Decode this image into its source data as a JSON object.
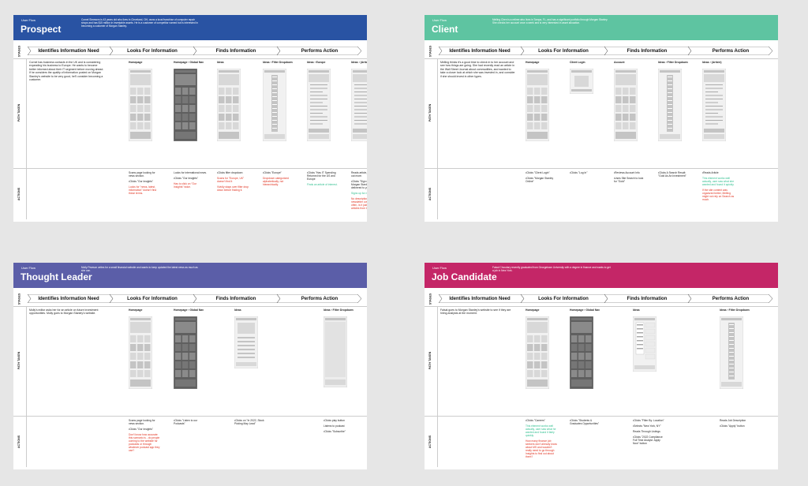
{
  "panels": [
    {
      "id": "prospect",
      "color": "#2953a3",
      "user_flow": "User Flow",
      "title": "Prospect",
      "description": "Cornel Simmons is 43 years old who lives in Cleveland, OH, owns a local franchise of computer repair shops and has $15 million in investable assets. He is a customer of competitor named but is interested in becoming a customer of Morgan Stanley.",
      "stages": [
        "Identifies Information Need",
        "Looks For Information",
        "Finds Information",
        "Performs Action"
      ],
      "side_labels": {
        "stages": "STAGES",
        "path": "PATH TAKEN",
        "actions": "ACTIONS"
      },
      "intro": "Cornel has business contacts in the UK and is considering expanding his business to Europe. He wants to become better informed about their IT segment before moving ahead. If he considers the quality of information posted on Morgan Stanley's website to be very good, he'll consider becoming a customer.",
      "columns": [
        {
          "label": "Homepage",
          "actions": [
            {
              "t": "Scans page looking for news section.",
              "c": "n"
            },
            {
              "t": "•Clicks \"Our Insights\"",
              "c": "n"
            },
            {
              "t": "Looks for \"news, latest, information\" doesn't find these terms.",
              "c": "r"
            }
          ]
        },
        {
          "label": "Homepage › Global Nav",
          "actions": [
            {
              "t": "Looks for international news.",
              "c": "n"
            },
            {
              "t": "•Clicks \"Our Insights\"",
              "c": "n"
            },
            {
              "t": "Has to click on \"Our Insights\" twice.",
              "c": "r"
            }
          ]
        },
        {
          "label": "Ideas",
          "actions": [
            {
              "t": "•Clicks filter dropdown",
              "c": "n"
            },
            {
              "t": "Scans for \"Europe, UK\" doesn't find it",
              "c": "r"
            },
            {
              "t": "Vividly stays over filter drop down before finding it.",
              "c": "r"
            }
          ]
        },
        {
          "label": "Ideas › Filter Dropdown",
          "actions": [
            {
              "t": "•Clicks \"Europe\"",
              "c": "n"
            },
            {
              "t": "Dropdown categorized alphabetically, not hierarchically.",
              "c": "r"
            }
          ]
        },
        {
          "label": "Ideas › Europe",
          "actions": [
            {
              "t": "•Clicks \"Has IT Spending Returned for the US and Europe",
              "c": "n"
            },
            {
              "t": "Finds an article of interest.",
              "c": "g"
            }
          ]
        },
        {
          "label": "Ideas › (Article)",
          "actions": [
            {
              "t": "Reads article, wants to find out more.",
              "c": "n"
            },
            {
              "t": "•Clicks \"Sign up to get Morgan Stanley Ideas delivered to your Inbox.",
              "c": "n"
            },
            {
              "t": "Signs up for newsletter.",
              "c": "g"
            },
            {
              "t": "No description of what newsletter covers. How often, is it just the latest articles from the site?",
              "c": "r"
            }
          ]
        }
      ]
    },
    {
      "id": "client",
      "color": "#5ec4a1",
      "user_flow": "User Flow",
      "title": "Client",
      "description": "Melling Chen is a retiree who lives in Tampa, FL, and has a significant portfolio through Morgan Stanley. She checks her account once a week and is very interested in asset allocation.",
      "stages": [
        "Identifies Information Need",
        "Looks For Information",
        "Finds Information",
        "Performs Action"
      ],
      "side_labels": {
        "stages": "STAGES",
        "path": "PATH TAKEN",
        "actions": "ACTIONS"
      },
      "intro": "Melling thinks it's a good time to check in to her account and see how things are going. She had recently read an article in the Wall Street Journal about commodities, and wanted to take a closer look at which she was invested in, and consider if she should invest in other types.",
      "columns": [
        {
          "label": "Homepage",
          "actions": [
            {
              "t": "•Clicks \"Client Login\"",
              "c": "n"
            },
            {
              "t": "•Clicks \"Morgan Stanley Online\"",
              "c": "n"
            }
          ]
        },
        {
          "label": "Client Login",
          "actions": [
            {
              "t": "•Clicks \"Log In\"",
              "c": "n"
            }
          ]
        },
        {
          "label": "Account",
          "actions": [
            {
              "t": "•Reviews Account Info",
              "c": "n"
            },
            {
              "t": "•Uses Site Search to look for \"Gold\"",
              "c": "n"
            }
          ]
        },
        {
          "label": "Ideas › Filter Dropdown",
          "actions": [
            {
              "t": "•Clicks A Search Result: \"Gold As An Investment\"",
              "c": "n"
            }
          ]
        },
        {
          "label": "Ideas › (Article)",
          "actions": [
            {
              "t": "•Reads Article",
              "c": "n"
            },
            {
              "t": "This element works well actually, user saw what she wanted and found it quickly.",
              "c": "g"
            },
            {
              "t": "If the site content was organized better, Melling might not rely on Search as much.",
              "c": "r"
            }
          ]
        }
      ]
    },
    {
      "id": "thought-leader",
      "color": "#5b5ea8",
      "user_flow": "User Flow",
      "title": "Thought Leader",
      "description": "Molly Pearson writes for a small financial website and wants to keep updated the latest news as much as she can.",
      "stages": [
        "Identifies Information Need",
        "Looks For Information",
        "Finds Information",
        "Performs Action"
      ],
      "side_labels": {
        "stages": "STAGES",
        "path": "PATH TAKEN",
        "actions": "ACTIONS"
      },
      "intro": "Molly's editor asks her for an article on future investment opportunities. Molly goes to Morgan Stanley's website.",
      "columns": [
        {
          "label": "Homepage",
          "actions": [
            {
              "t": "Scans page looking for news section.",
              "c": "n"
            },
            {
              "t": "•Clicks \"Our Insights\"",
              "c": "n"
            },
            {
              "t": "Don't know how accurate this scenario is - do people coming to the website for podcasts or through whatever podcast app they use?",
              "c": "r"
            }
          ]
        },
        {
          "label": "Homepage › Global Nav",
          "actions": [
            {
              "t": "•Clicks \"Listen to our Podcasts\"",
              "c": "n"
            }
          ]
        },
        {
          "label": "Ideas",
          "actions": [
            {
              "t": "•Clicks on \"In 2022, Stock Picking May Lead\"",
              "c": "n"
            }
          ]
        },
        {
          "label": "Ideas › Filter Dropdown",
          "actions": [
            {
              "t": "•Clicks play button",
              "c": "n"
            },
            {
              "t": "Listens to podcast",
              "c": "n"
            },
            {
              "t": "•Clicks \"Subscribe\"",
              "c": "n"
            }
          ]
        }
      ]
    },
    {
      "id": "job-candidate",
      "color": "#c42667",
      "user_flow": "User Flow",
      "title": "Job Candidate",
      "description": "Faisal Choudary recently graduated from Georgetown University with a degree in finance and wants to get a job in New York.",
      "stages": [
        "Identifies Information Need",
        "Looks For Information",
        "Finds Information",
        "Performs Action"
      ],
      "side_labels": {
        "stages": "STAGES",
        "path": "PATH TAKEN",
        "actions": "ACTIONS"
      },
      "intro": "Faisal goes to Morgan Stanley's website to see if they are hiring analysts at the moment.",
      "columns": [
        {
          "label": "Homepage",
          "actions": [
            {
              "t": "•Clicks \"Careers\"",
              "c": "n"
            },
            {
              "t": "This element works well actually, user saw what he wanted and found it fairly quickly.",
              "c": "g"
            },
            {
              "t": "How many finance job seekers don't already know about MS and wouldn't really need to go through Insights to find out about them?",
              "c": "r"
            }
          ]
        },
        {
          "label": "Homepage › Global Nav",
          "actions": [
            {
              "t": "•Clicks \"Students & Graduates Opportunities\"",
              "c": "n"
            }
          ]
        },
        {
          "label": "Ideas",
          "actions": [
            {
              "t": "•Clicks \"Filter By: Location\"",
              "c": "n"
            },
            {
              "t": "•Selects \"New York, NY\"",
              "c": "n"
            },
            {
              "t": "Reads Through Listings",
              "c": "n"
            },
            {
              "t": "•Clicks \"2022 Compliance Full Time Analyst. Apply Now\" button",
              "c": "n"
            }
          ]
        },
        {
          "label": "Ideas › Filter Dropdown",
          "actions": [
            {
              "t": "Reads Job Description",
              "c": "n"
            },
            {
              "t": "•Clicks \"Apply\" button",
              "c": "n"
            }
          ]
        }
      ]
    }
  ]
}
